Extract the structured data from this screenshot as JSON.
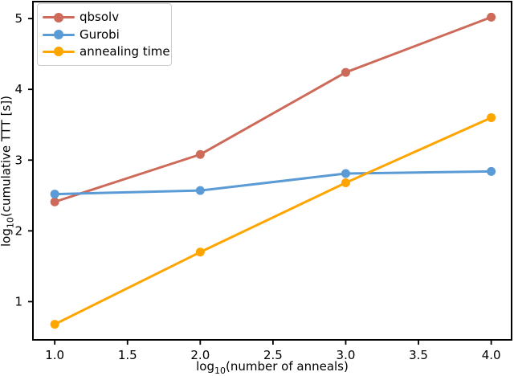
{
  "chart_data": {
    "type": "line",
    "x": [
      1.0,
      2.0,
      3.0,
      4.0
    ],
    "series": [
      {
        "name": "qbsolv",
        "color": "#CD6A5A",
        "values": [
          2.41,
          3.08,
          4.24,
          5.02
        ]
      },
      {
        "name": "Gurobi",
        "color": "#5B9BD5",
        "values": [
          2.52,
          2.57,
          2.81,
          2.84
        ]
      },
      {
        "name": "annealing time",
        "color": "#FFA500",
        "values": [
          0.68,
          1.7,
          2.68,
          3.6
        ]
      }
    ],
    "xlabel": {
      "prefix": "log",
      "sub": "10",
      "rest": "(number of anneals)"
    },
    "ylabel": {
      "prefix": "log",
      "sub": "10",
      "rest": "(cumulative TTT [s])"
    },
    "xticks": {
      "labels": [
        "1.0",
        "1.5",
        "2.0",
        "2.5",
        "3.0",
        "3.5",
        "4.0"
      ],
      "values": [
        1.0,
        1.5,
        2.0,
        2.5,
        3.0,
        3.5,
        4.0
      ]
    },
    "yticks": {
      "labels": [
        "1",
        "2",
        "3",
        "4",
        "5"
      ],
      "values": [
        1,
        2,
        3,
        4,
        5
      ]
    },
    "xlim": [
      0.85,
      4.14
    ],
    "ylim": [
      0.46,
      5.24
    ],
    "grid": false,
    "legend": {
      "position": "upper-left"
    },
    "axis_color": "#000000",
    "background": "#ffffff"
  }
}
